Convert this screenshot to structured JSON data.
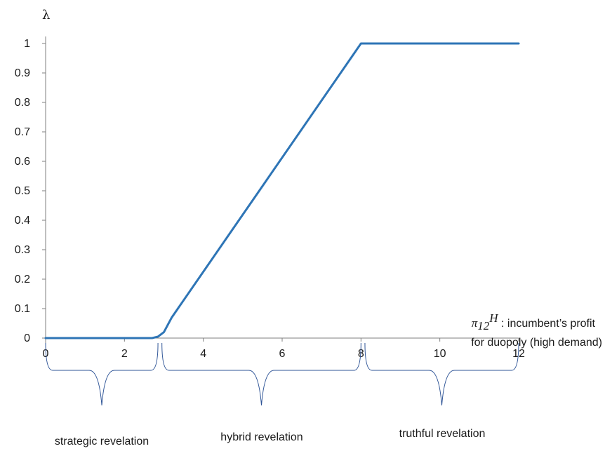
{
  "chart_data": {
    "type": "line",
    "ylabel": "λ",
    "xlabel_annotation": {
      "symbol": "π",
      "subscript": "12",
      "superscript": "H",
      "line1_rest": " : incumbent’s profit",
      "line2": "for duopoly (high demand)"
    },
    "xlim": [
      0,
      12
    ],
    "ylim": [
      0,
      1
    ],
    "x_ticks": [
      "0",
      "2",
      "4",
      "6",
      "8",
      "10",
      "12"
    ],
    "y_ticks": [
      "0",
      "0.1",
      "0.2",
      "0.3",
      "0.4",
      "0.5",
      "0.6",
      "0.7",
      "0.8",
      "0.9",
      "1"
    ],
    "grid": false,
    "series": [
      {
        "color": "#2e75b6",
        "x": [
          0,
          2.7,
          2.85,
          3.0,
          3.2,
          8.0,
          8.1,
          12
        ],
        "y": [
          0,
          0,
          0.005,
          0.02,
          0.07,
          1.0,
          1.0,
          1.0
        ]
      }
    ],
    "regions": [
      {
        "from": 0,
        "to": 2.85,
        "label": "strategic revelation"
      },
      {
        "from": 2.95,
        "to": 8.0,
        "label": "hybrid revelation"
      },
      {
        "from": 8.1,
        "to": 12,
        "label": "truthful revelation"
      }
    ]
  }
}
